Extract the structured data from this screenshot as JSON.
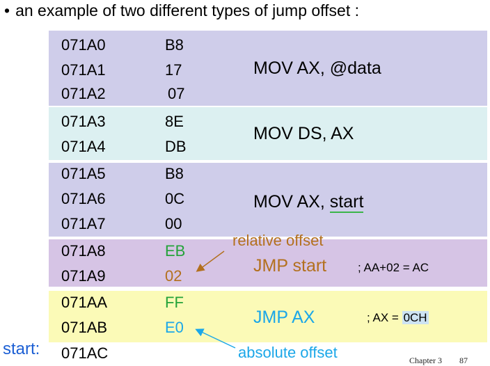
{
  "title": "an example of two different types of jump offset :",
  "rows": [
    {
      "addr": "071A0",
      "byte": "B8"
    },
    {
      "addr": "071A1",
      "byte": "17"
    },
    {
      "addr": "071A2",
      "byte": "07"
    },
    {
      "addr": "071A3",
      "byte": "8E"
    },
    {
      "addr": "071A4",
      "byte": "DB"
    },
    {
      "addr": "071A5",
      "byte": "B8"
    },
    {
      "addr": "071A6",
      "byte": "0C"
    },
    {
      "addr": "071A7",
      "byte": "00"
    },
    {
      "addr": "071A8",
      "byte": "EB"
    },
    {
      "addr": "071A9",
      "byte": "02"
    },
    {
      "addr": "071AA",
      "byte": "FF"
    },
    {
      "addr": "071AB",
      "byte": "E0"
    },
    {
      "addr": "071AC",
      "byte": ""
    }
  ],
  "instructions": {
    "mov_ax_data": "MOV AX, @data",
    "mov_ds_ax": "MOV DS, AX",
    "mov_ax_start_prefix": "MOV AX, ",
    "mov_ax_start_operand": "start",
    "jmp_start": "JMP start",
    "jmp_ax": "JMP AX"
  },
  "comments": {
    "jmp_start_comment": "; AA+02 = AC",
    "jmp_ax_comment_prefix": "; AX = ",
    "jmp_ax_comment_highlight": "0CH"
  },
  "annotations": {
    "relative_offset": "relative offset",
    "absolute_offset": "absolute offset",
    "start_label": "start:"
  },
  "footer": {
    "chapter": "Chapter 3",
    "page": "87"
  },
  "colors": {
    "band_purple": "#cfcdea",
    "band_cyan": "#dcf0f1",
    "band_violet": "#d6c4e5",
    "band_yellow": "#fbfab7",
    "orange": "#b3701e",
    "blue": "#1ba7e8",
    "green": "#24a23a",
    "start_blue": "#1c5fd4"
  }
}
